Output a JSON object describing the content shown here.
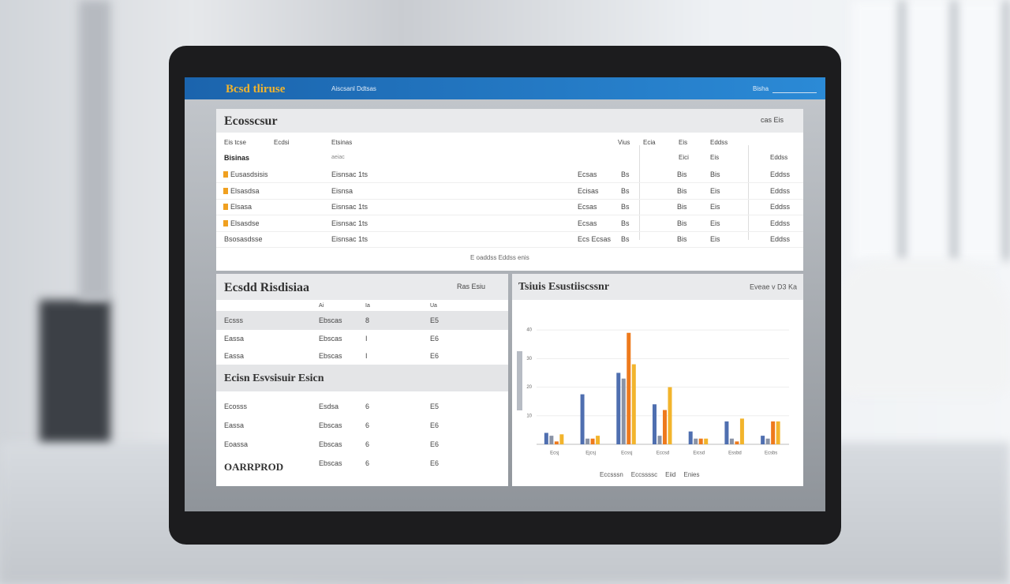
{
  "header": {
    "logo": "Bcsd tliruse",
    "nav": "Aiscsanl Ddtsas",
    "user": "Bisha"
  },
  "overview": {
    "title": "Ecosscsur",
    "actions": "cas Eis",
    "columns": [
      "Eis tcse",
      "Ecdsi",
      "Etsinas",
      "Vius",
      "Ecia",
      "Eis",
      "Eddss"
    ],
    "subheader": {
      "group": "Bisinas",
      "note": "aeiac",
      "cols": [
        "Eici",
        "Eis",
        "Eddss"
      ]
    },
    "rows": [
      [
        "Eusasdsisis",
        "Eisnsac 1ts",
        "Ecsas",
        "Bs",
        "Bis",
        "Bis",
        "Eddss"
      ],
      [
        "Elsasdsa",
        "Eisnsa",
        "Ecisas",
        "Bs",
        "Bis",
        "Eis",
        "Eddss"
      ],
      [
        "Elsasa",
        "Eisnsac 1ts",
        "Ecsas",
        "Bs",
        "Bis",
        "Eis",
        "Eddss"
      ],
      [
        "Elsasdse",
        "Eisnsac 1ts",
        "Ecsas",
        "Bs",
        "Bis",
        "Eis",
        "Eddss"
      ],
      [
        "Bsosasdsse",
        "Eisnsac 1ts",
        "Ecs Ecsas",
        "Bs",
        "Bis",
        "Eis",
        "Eddss"
      ]
    ],
    "footer": "E oaddss Eddss enis"
  },
  "stock": {
    "title": "Ecsdd Risdisiaa",
    "actions": "Ras Esiu",
    "columns": [
      "Ai",
      "Ia",
      "Ua"
    ],
    "rows": [
      [
        "Ecsss",
        "Ebscas",
        "8",
        "E5"
      ],
      [
        "Eassa",
        "Ebscas",
        "I",
        "E6"
      ],
      [
        "Eassa",
        "Ebscas",
        "I",
        "E6"
      ]
    ],
    "section": "Ecisn Esvsisuir Esicn",
    "section_rows": [
      [
        "Ecosss",
        "Esdsa",
        "6",
        "E5"
      ],
      [
        "Eassa",
        "Ebscas",
        "6",
        "E6"
      ],
      [
        "Eoassa",
        "Ebscas",
        "6",
        "E6"
      ],
      [
        "OARRPROD",
        "Ebscas",
        "6",
        "E6"
      ]
    ]
  },
  "chart_data": {
    "type": "bar",
    "title": "Tsiuis Esustiiscssnr",
    "subtitle": "Eveae v D3 Ka",
    "categories": [
      "Ecsj",
      "Ejcsj",
      "Ecssj",
      "Eccsd",
      "Eicsd",
      "Essbd",
      "Ecsbs"
    ],
    "series": [
      {
        "name": "Eccsssn",
        "color": "#4f6fb0",
        "values": [
          4,
          17.5,
          25,
          14,
          4.5,
          8,
          3
        ]
      },
      {
        "name": "Eccssssc",
        "color": "#8a93a6",
        "values": [
          3,
          2,
          23,
          3,
          2,
          2,
          2
        ]
      },
      {
        "name": "Eiid",
        "color": "#ee7a1c",
        "values": [
          1,
          2,
          39,
          12,
          2,
          1,
          8
        ]
      },
      {
        "name": "Enies",
        "color": "#f2b42c",
        "values": [
          3.5,
          3,
          28,
          20,
          2,
          9,
          8
        ]
      }
    ],
    "ylim": [
      0,
      45
    ],
    "yticks": [
      10,
      20,
      30,
      40
    ],
    "grid": true
  }
}
